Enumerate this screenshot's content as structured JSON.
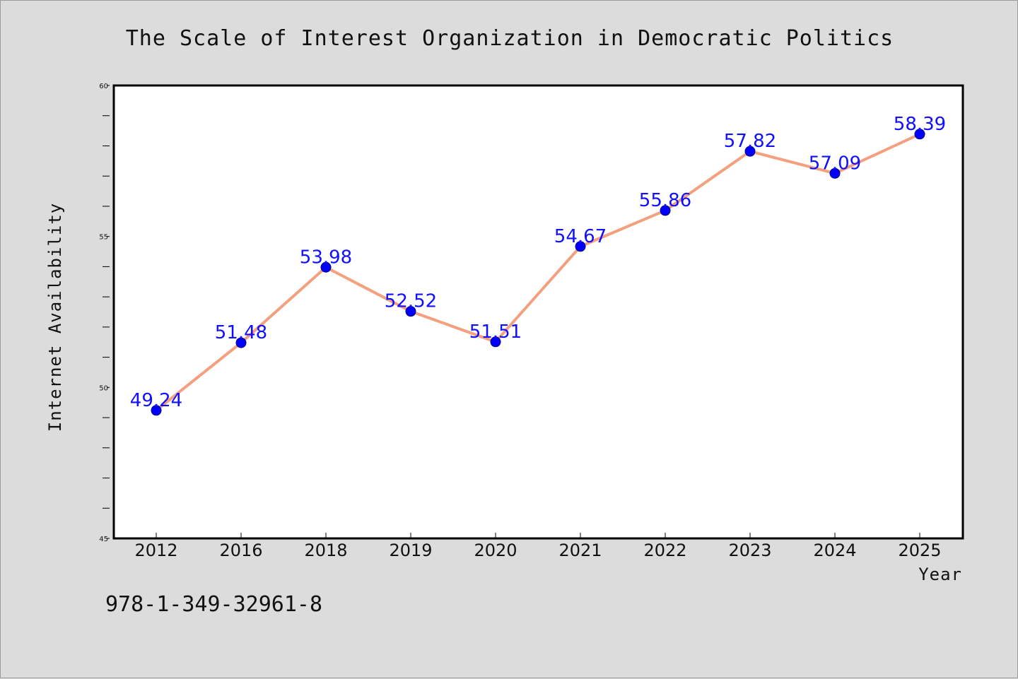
{
  "chart_data": {
    "type": "line",
    "title": "The Scale of Interest Organization in Democratic Politics",
    "xlabel": "Year",
    "ylabel": "Internet Availability",
    "categories": [
      "2012",
      "2016",
      "2018",
      "2019",
      "2020",
      "2021",
      "2022",
      "2023",
      "2024",
      "2025"
    ],
    "values": [
      49.24,
      51.48,
      53.98,
      52.52,
      51.51,
      54.67,
      55.86,
      57.82,
      57.09,
      58.39
    ],
    "data_labels": [
      "49.24",
      "51.48",
      "53.98",
      "52.52",
      "51.51",
      "54.67",
      "55.86",
      "57.82",
      "57.09",
      "58.39"
    ],
    "ylim": [
      45,
      60
    ],
    "yticks": [
      "45",
      "50",
      "55",
      "60"
    ],
    "grid": false,
    "legend": "none",
    "colors": {
      "line": "#f4a07f",
      "marker": "#0000ff",
      "marker_edge": "#00007a",
      "data_label": "#1010ff",
      "plot_bg": "#ffffff",
      "page_bg": "#dcdcdc"
    }
  },
  "footer": {
    "isbn": "978-1-349-32961-8"
  }
}
